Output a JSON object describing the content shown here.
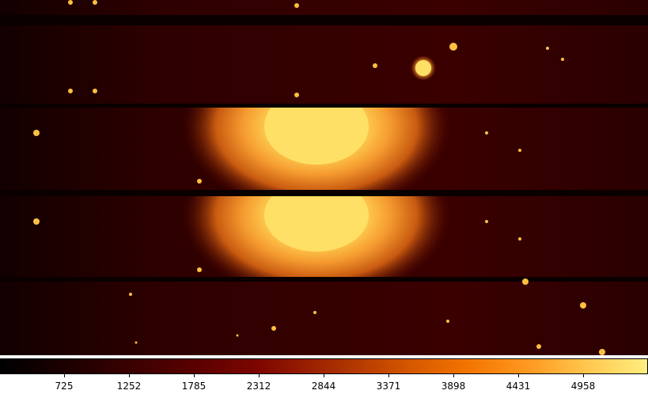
{
  "image": {
    "description_name": "astronomical-ccd-frame",
    "colors": {
      "background": "#000000",
      "band": "#3a0000",
      "gap": "#120000",
      "glow": "#ff9a22",
      "core": "#ffe066",
      "star": "#ffd060"
    }
  },
  "colorbar": {
    "ticks": [
      "725",
      "1252",
      "1785",
      "2312",
      "2844",
      "3371",
      "3898",
      "4431",
      "4958"
    ]
  }
}
